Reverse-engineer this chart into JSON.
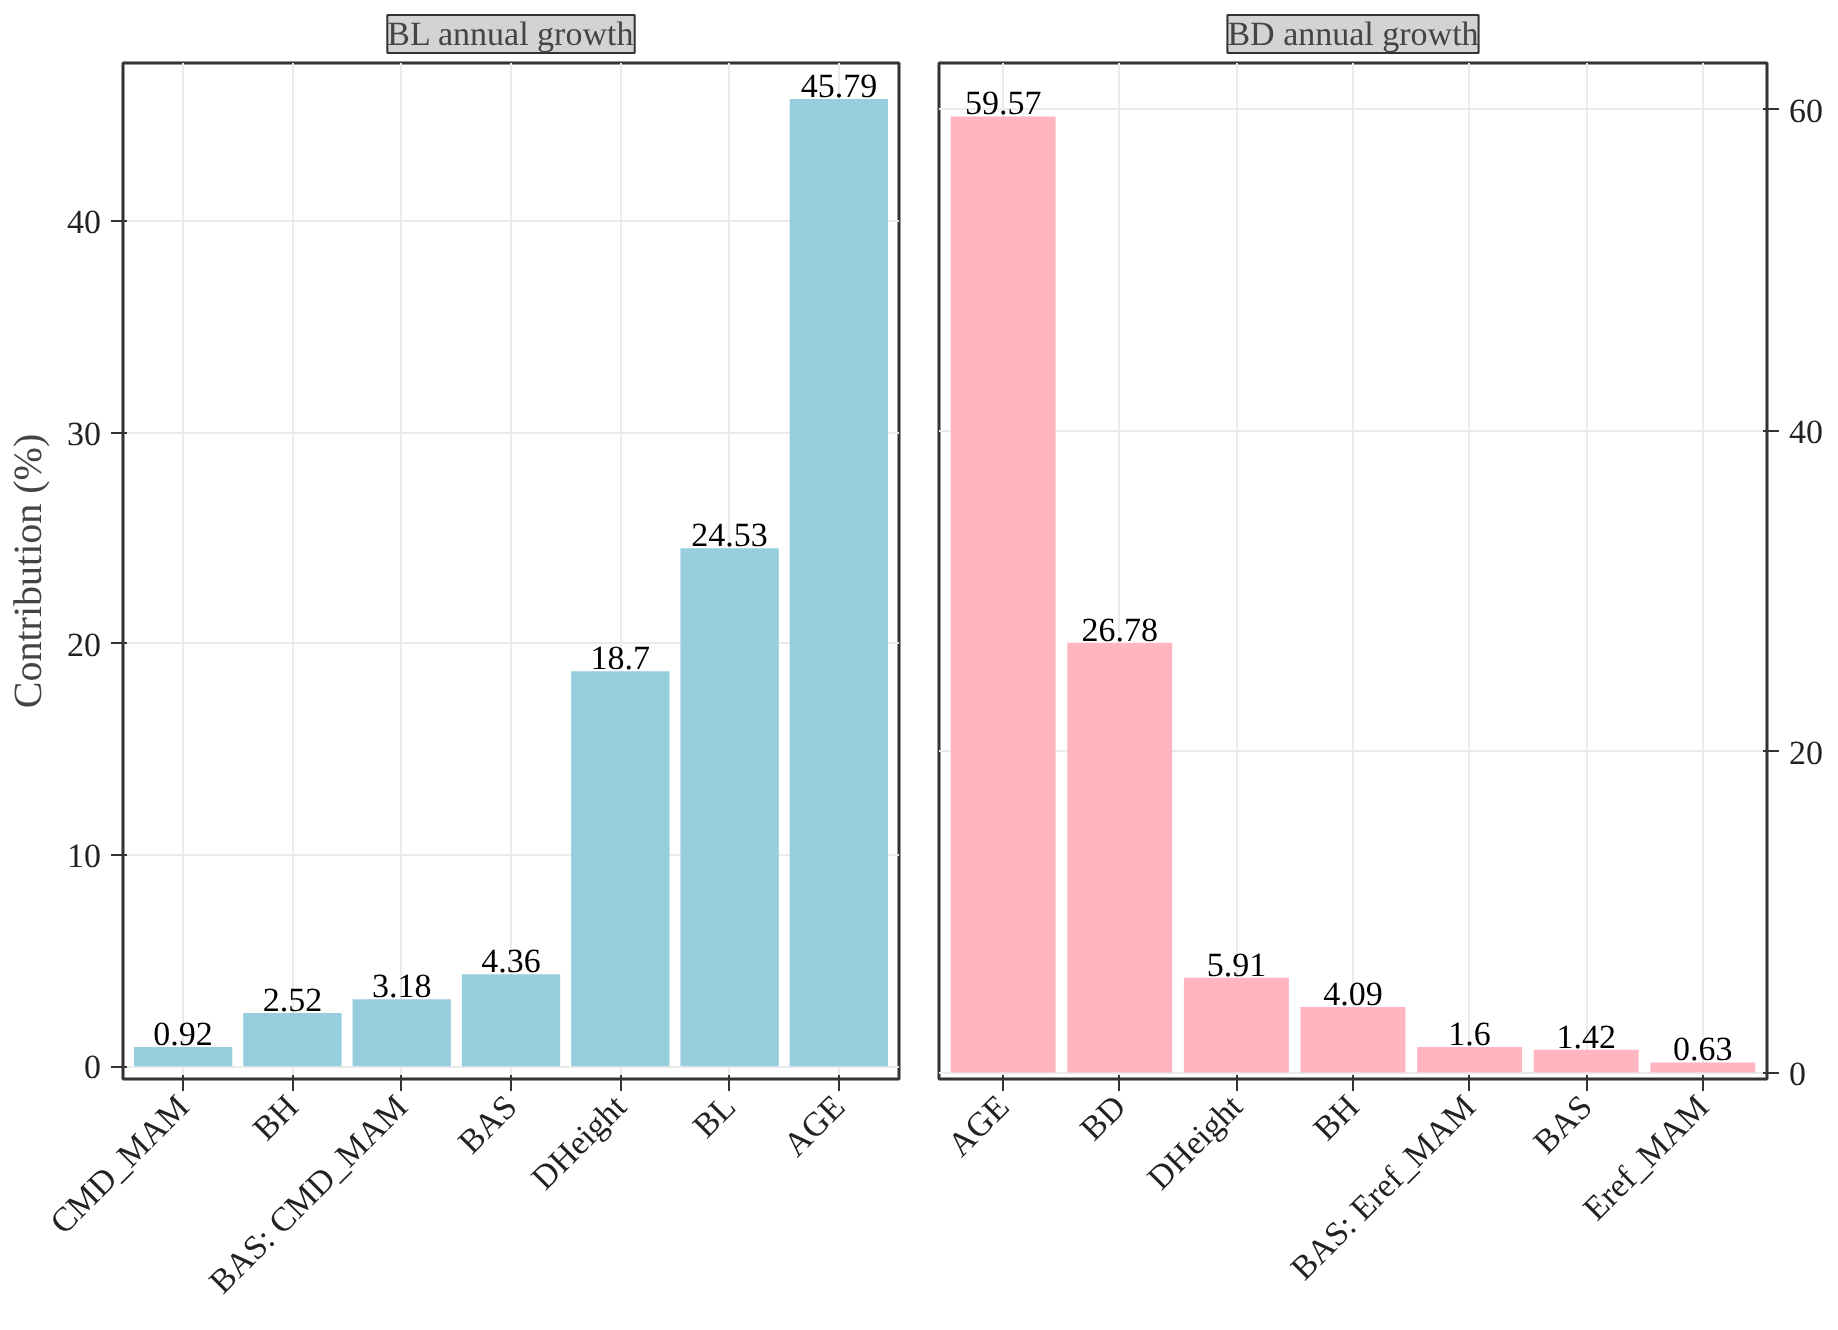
{
  "chart_data": [
    {
      "type": "bar",
      "title": "BL annual growth",
      "ylabel": "Contribution (%)",
      "categories": [
        "CMD_MAM",
        "BH",
        "BAS: CMD_MAM",
        "BAS",
        "DHeight",
        "BL",
        "AGE"
      ],
      "values": [
        0.92,
        2.52,
        3.18,
        4.36,
        18.7,
        24.53,
        45.79
      ],
      "color": "#96cedd",
      "ylim": [
        -0.6,
        47.5
      ],
      "yticks": [
        0,
        10,
        20,
        30,
        40
      ],
      "grid": true,
      "data_labels": true
    },
    {
      "type": "bar",
      "title": "BD annual growth",
      "categories": [
        "AGE",
        "BD",
        "DHeight",
        "BH",
        "BAS: Eref_MAM",
        "BAS",
        "Eref_MAM"
      ],
      "values": [
        59.57,
        26.78,
        5.91,
        4.09,
        1.6,
        1.42,
        0.63
      ],
      "color": "#ffb6c1",
      "ylim": [
        -0.4,
        62.9
      ],
      "yticks": [
        0,
        20,
        40,
        60
      ],
      "grid": true,
      "data_labels": true
    }
  ]
}
